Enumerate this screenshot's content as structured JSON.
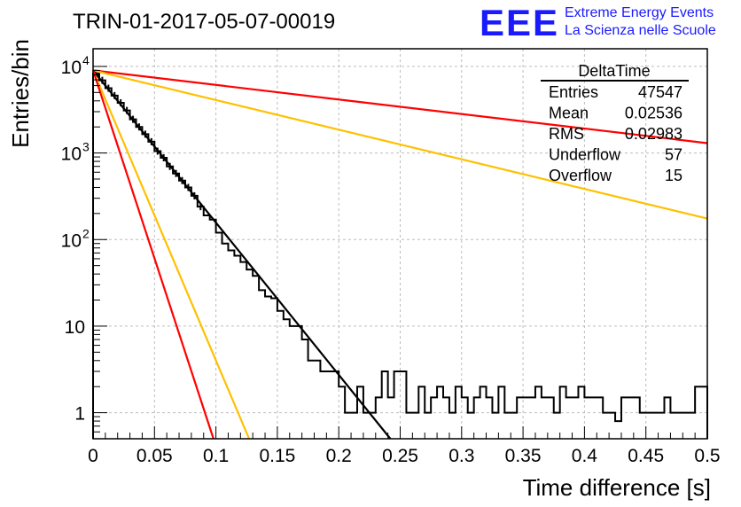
{
  "logo": {
    "text": "EEE",
    "line1": "Extreme Energy Events",
    "line2": "La Scienza nelle Scuole",
    "color": "#1a1aff"
  },
  "chart_data": {
    "type": "histogram",
    "title": "TRIN-01-2017-05-07-00019",
    "xlabel": "Time difference [s]",
    "ylabel": "Entries/bin",
    "xlim": [
      0,
      0.5
    ],
    "ylim": [
      0.5,
      16000
    ],
    "y_scale": "log",
    "grid": true,
    "x_ticks": [
      "0",
      "0.05",
      "0.1",
      "0.15",
      "0.2",
      "0.25",
      "0.3",
      "0.35",
      "0.4",
      "0.45",
      "0.5"
    ],
    "y_ticks": [
      {
        "value": 1,
        "base": "1",
        "exp": ""
      },
      {
        "value": 10,
        "base": "10",
        "exp": ""
      },
      {
        "value": 100,
        "base": "10",
        "exp": "2"
      },
      {
        "value": 1000,
        "base": "10",
        "exp": "3"
      },
      {
        "value": 10000,
        "base": "10",
        "exp": "4"
      }
    ],
    "stats_box": {
      "title": "DeltaTime",
      "position": "top-right",
      "rows": [
        {
          "label": "Entries",
          "value": "47547"
        },
        {
          "label": "Mean",
          "value": "0.02536"
        },
        {
          "label": "RMS",
          "value": "0.02983"
        },
        {
          "label": "Underflow",
          "value": "57"
        },
        {
          "label": "Overflow",
          "value": "15"
        }
      ]
    },
    "histogram": {
      "bin_width": 0.005,
      "color": "#000000",
      "values": [
        8300,
        6900,
        5600,
        4600,
        3800,
        3100,
        2450,
        2000,
        1650,
        1350,
        1050,
        880,
        700,
        580,
        480,
        400,
        320,
        240,
        190,
        170,
        120,
        90,
        75,
        65,
        55,
        45,
        38,
        26,
        22,
        21,
        15,
        12,
        10,
        10,
        7,
        4,
        4,
        3,
        3,
        3,
        2,
        1,
        1,
        2,
        1,
        1,
        1.5,
        3,
        1.5,
        3,
        3,
        1,
        1,
        2,
        1,
        1.5,
        2,
        1.5,
        1,
        2,
        1.5,
        1,
        1.5,
        2,
        1.5,
        1,
        2,
        1,
        1,
        1.5,
        1.5,
        1.5,
        2,
        1.5,
        1.5,
        1,
        2,
        1.5,
        1.5,
        2,
        1.5,
        1.5,
        1.5,
        1,
        1,
        0.8,
        1.5,
        1.5,
        1.5,
        1,
        1,
        1,
        1,
        1.5,
        1,
        1,
        1,
        1,
        2,
        2
      ]
    },
    "fits": [
      {
        "color": "#ff0000",
        "y0": 9000,
        "y1": 1300,
        "x1": 0.5
      },
      {
        "color": "#ffc000",
        "y0": 9000,
        "y1": 175,
        "x1": 0.5
      },
      {
        "color": "#000000",
        "y0": 9000,
        "y1": 0.5,
        "x1": 0.242
      },
      {
        "color": "#ffc000",
        "y0": 9000,
        "y1": 0.5,
        "x1": 0.127
      },
      {
        "color": "#ff0000",
        "y0": 9000,
        "y1": 0.5,
        "x1": 0.098
      }
    ]
  }
}
